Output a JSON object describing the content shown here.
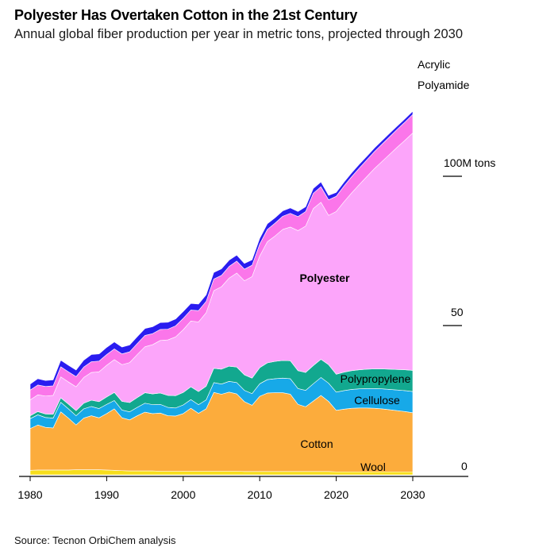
{
  "header": {
    "title": "Polyester Has Overtaken Cotton in the 21st Century",
    "subtitle": "Annual global fiber production per year in metric tons, projected through 2030"
  },
  "footer": {
    "source": "Source: Tecnon OrbiChem analysis"
  },
  "colors": {
    "Wool": "#f7de1c",
    "Cotton": "#fcac3c",
    "Cellulose": "#17a9e8",
    "Polypropylene": "#12a88f",
    "Polyester": "#fca5fa",
    "Polyamide": "#fb76ea",
    "Acrylic": "#2a1cf0",
    "axis": "#000000"
  },
  "chart_data": {
    "type": "area",
    "stacked": true,
    "x": [
      1980,
      1981,
      1982,
      1983,
      1984,
      1985,
      1986,
      1987,
      1988,
      1989,
      1990,
      1991,
      1992,
      1993,
      1994,
      1995,
      1996,
      1997,
      1998,
      1999,
      2000,
      2001,
      2002,
      2003,
      2004,
      2005,
      2006,
      2007,
      2008,
      2009,
      2010,
      2011,
      2012,
      2013,
      2014,
      2015,
      2016,
      2017,
      2018,
      2019,
      2020,
      2021,
      2022,
      2023,
      2024,
      2025,
      2026,
      2027,
      2028,
      2029,
      2030
    ],
    "xlim": [
      1980,
      2036
    ],
    "xticks": [
      "1980",
      "1990",
      "2000",
      "2010",
      "2020",
      "2030"
    ],
    "ylim": [
      0,
      135
    ],
    "yticks": [
      {
        "value": 0,
        "label": "0"
      },
      {
        "value": 50,
        "label": "50"
      },
      {
        "value": 100,
        "label": "100M tons"
      }
    ],
    "series": [
      {
        "name": "Wool",
        "values": [
          1.5,
          1.6,
          1.6,
          1.6,
          1.6,
          1.6,
          1.7,
          1.7,
          1.7,
          1.7,
          1.6,
          1.5,
          1.4,
          1.3,
          1.3,
          1.3,
          1.3,
          1.2,
          1.2,
          1.2,
          1.2,
          1.2,
          1.2,
          1.2,
          1.2,
          1.2,
          1.2,
          1.2,
          1.1,
          1.1,
          1.1,
          1.1,
          1.1,
          1.1,
          1.1,
          1.1,
          1.1,
          1.1,
          1.1,
          1.1,
          1.0,
          1.0,
          1.0,
          1.0,
          1.0,
          1.0,
          1.0,
          1.0,
          1.0,
          1.0,
          1.0
        ]
      },
      {
        "name": "Cotton",
        "values": [
          14.0,
          15.1,
          14.3,
          14.1,
          19.5,
          17.4,
          15.0,
          17.3,
          18.1,
          17.4,
          18.9,
          20.6,
          17.7,
          17.1,
          18.5,
          19.7,
          19.2,
          19.5,
          18.6,
          18.5,
          19.3,
          21.1,
          19.4,
          20.9,
          26.4,
          25.8,
          26.5,
          25.9,
          23.4,
          22.2,
          25.2,
          26.3,
          26.4,
          26.4,
          25.9,
          22.5,
          21.7,
          23.6,
          25.5,
          23.5,
          20.6,
          21.0,
          21.3,
          21.4,
          21.4,
          21.3,
          21.1,
          20.8,
          20.5,
          20.2,
          19.8
        ]
      },
      {
        "name": "Cellulose",
        "values": [
          3.3,
          3.4,
          3.3,
          3.3,
          3.2,
          3.1,
          3.1,
          3.1,
          3.1,
          3.1,
          3.1,
          2.8,
          2.6,
          2.7,
          2.8,
          3.0,
          3.0,
          2.9,
          2.8,
          2.7,
          2.9,
          2.9,
          2.9,
          3.0,
          3.3,
          3.4,
          3.6,
          3.8,
          3.8,
          3.9,
          4.2,
          4.5,
          4.7,
          4.9,
          5.2,
          5.3,
          5.5,
          5.8,
          6.0,
          6.1,
          6.1,
          6.2,
          6.3,
          6.4,
          6.5,
          6.6,
          6.7,
          6.8,
          6.9,
          7.0,
          7.1
        ]
      },
      {
        "name": "Polypropylene",
        "values": [
          1.0,
          1.1,
          1.2,
          1.3,
          1.5,
          1.6,
          1.7,
          1.9,
          2.1,
          2.3,
          2.5,
          2.7,
          2.9,
          3.1,
          3.3,
          3.5,
          3.6,
          3.8,
          4.0,
          4.1,
          4.2,
          4.3,
          4.4,
          4.6,
          4.8,
          5.0,
          5.1,
          5.2,
          5.2,
          5.2,
          5.4,
          5.6,
          5.8,
          5.9,
          6.0,
          6.0,
          6.0,
          6.1,
          6.1,
          6.2,
          6.0,
          6.2,
          6.3,
          6.4,
          6.5,
          6.6,
          6.7,
          6.8,
          6.9,
          7.0,
          7.1
        ]
      },
      {
        "name": "Polyester",
        "values": [
          5.3,
          5.6,
          6.0,
          6.3,
          7.0,
          7.4,
          8.0,
          8.6,
          9.3,
          10.0,
          10.6,
          11.0,
          12.3,
          13.4,
          14.4,
          15.4,
          16.5,
          17.6,
          18.6,
          19.7,
          21.0,
          22.0,
          23.3,
          24.6,
          26.0,
          27.6,
          29.5,
          31.5,
          31.5,
          34.0,
          37.4,
          40.6,
          42.0,
          43.9,
          44.8,
          46.9,
          49.0,
          52.6,
          52.6,
          50.0,
          54.5,
          57.0,
          59.5,
          62.0,
          64.5,
          67.1,
          69.5,
          72.0,
          74.5,
          76.9,
          79.5
        ]
      },
      {
        "name": "Polyamide",
        "values": [
          3.3,
          3.3,
          3.2,
          3.2,
          3.4,
          3.4,
          3.4,
          3.5,
          3.6,
          3.6,
          3.6,
          3.6,
          3.6,
          3.6,
          3.7,
          3.8,
          3.7,
          3.7,
          3.6,
          3.7,
          3.8,
          3.7,
          3.8,
          3.8,
          3.9,
          3.8,
          3.9,
          4.0,
          3.9,
          3.8,
          4.0,
          4.1,
          4.3,
          4.4,
          4.6,
          4.7,
          4.9,
          5.1,
          5.2,
          5.2,
          5.1,
          5.3,
          5.4,
          5.5,
          5.6,
          5.7,
          5.8,
          5.9,
          6.0,
          6.1,
          6.2
        ]
      },
      {
        "name": "Acrylic",
        "values": [
          2.0,
          2.1,
          2.0,
          2.0,
          2.2,
          2.2,
          2.2,
          2.3,
          2.4,
          2.4,
          2.4,
          2.3,
          2.3,
          2.3,
          2.3,
          2.3,
          2.3,
          2.3,
          2.3,
          2.3,
          2.3,
          2.2,
          2.2,
          2.2,
          2.2,
          2.2,
          2.1,
          2.0,
          1.9,
          1.8,
          1.9,
          1.9,
          1.8,
          1.8,
          1.8,
          1.7,
          1.6,
          1.6,
          1.6,
          1.5,
          1.3,
          1.3,
          1.3,
          1.3,
          1.2,
          1.2,
          1.2,
          1.2,
          1.1,
          1.1,
          1.1
        ]
      }
    ],
    "labels": {
      "Acrylic": "Acrylic",
      "Polyamide": "Polyamide",
      "Polyester": "Polyester",
      "Polypropylene": "Polypropylene",
      "Cellulose": "Cellulose",
      "Cotton": "Cotton",
      "Wool": "Wool"
    }
  }
}
